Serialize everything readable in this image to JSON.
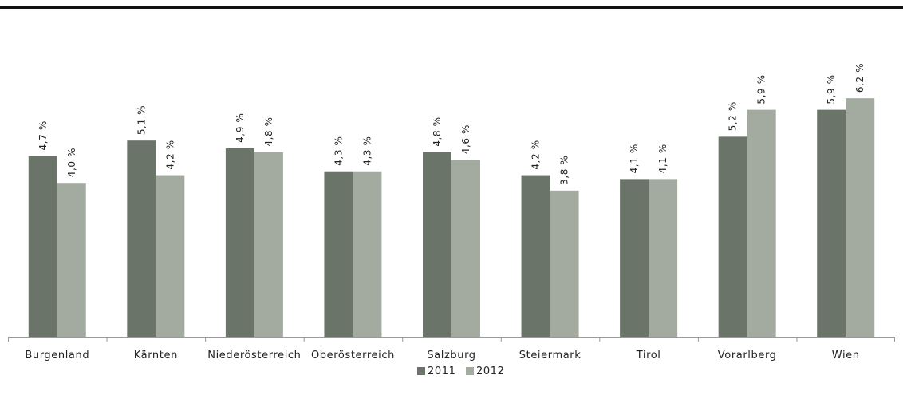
{
  "chart_data": {
    "type": "bar",
    "categories": [
      "Burgenland",
      "Kärnten",
      "Niederösterreich",
      "Oberösterreich",
      "Salzburg",
      "Steiermark",
      "Tirol",
      "Vorarlberg",
      "Wien"
    ],
    "series": [
      {
        "name": "2011",
        "color": "#6b7469",
        "values": [
          4.7,
          5.1,
          4.9,
          4.3,
          4.8,
          4.2,
          4.1,
          5.2,
          5.9
        ],
        "labels": [
          "4,7 %",
          "5,1 %",
          "4,9 %",
          "4,3 %",
          "4,8 %",
          "4,2 %",
          "4,1 %",
          "5,2 %",
          "5,9 %"
        ]
      },
      {
        "name": "2012",
        "color": "#a3aba1",
        "values": [
          4.0,
          4.2,
          4.8,
          4.3,
          4.6,
          3.8,
          4.1,
          5.9,
          6.2
        ],
        "labels": [
          "4,0 %",
          "4,2 %",
          "4,8 %",
          "4,3 %",
          "4,6 %",
          "3,8 %",
          "4,1 %",
          "5,9 %",
          "6,2 %"
        ]
      }
    ],
    "xlabel": "",
    "ylabel": "",
    "ylim": [
      0,
      6.5
    ],
    "grid": false,
    "legend": "bottom"
  }
}
